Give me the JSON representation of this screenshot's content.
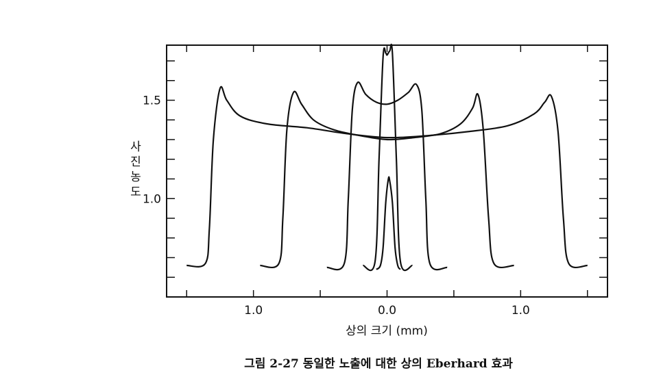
{
  "chart_data": {
    "type": "line",
    "xlabel": "상의 크기 (mm)",
    "ylabel": "사진농도",
    "caption": "그림 2-27  동일한 노출에 대한 상의 Eberhard 효과",
    "xlim": [
      -1.65,
      1.65
    ],
    "ylim": [
      0.5,
      1.78
    ],
    "x_tick_labels": [
      {
        "value": -1.0,
        "label": "1.0"
      },
      {
        "value": 0.0,
        "label": "0.0"
      },
      {
        "value": 1.0,
        "label": "1.0"
      }
    ],
    "y_tick_labels": [
      {
        "value": 1.5,
        "label": "1.5"
      },
      {
        "value": 1.0,
        "label": "1.0"
      }
    ],
    "series": [
      {
        "x": [
          -1.5,
          -1.36,
          -1.33,
          -1.3,
          -1.25,
          -1.2,
          -1.1,
          -0.9,
          -0.6,
          -0.3,
          0.0,
          0.3,
          0.6,
          0.9,
          1.1,
          1.18,
          1.23,
          1.28,
          1.32,
          1.36,
          1.5
        ],
        "y": [
          0.66,
          0.67,
          0.85,
          1.3,
          1.56,
          1.5,
          1.42,
          1.38,
          1.36,
          1.33,
          1.31,
          1.32,
          1.34,
          1.37,
          1.43,
          1.49,
          1.52,
          1.34,
          0.9,
          0.67,
          0.66
        ]
      },
      {
        "x": [
          -0.95,
          -0.81,
          -0.78,
          -0.75,
          -0.7,
          -0.64,
          -0.55,
          -0.4,
          -0.2,
          0.0,
          0.2,
          0.4,
          0.55,
          0.64,
          0.68,
          0.72,
          0.76,
          0.8,
          0.95
        ],
        "y": [
          0.66,
          0.67,
          0.9,
          1.35,
          1.54,
          1.48,
          1.4,
          1.35,
          1.32,
          1.3,
          1.31,
          1.33,
          1.38,
          1.46,
          1.53,
          1.35,
          0.9,
          0.67,
          0.66
        ]
      },
      {
        "x": [
          -0.45,
          -0.32,
          -0.29,
          -0.26,
          -0.22,
          -0.16,
          -0.08,
          0.0,
          0.08,
          0.16,
          0.22,
          0.26,
          0.29,
          0.32,
          0.45
        ],
        "y": [
          0.65,
          0.67,
          1.0,
          1.45,
          1.59,
          1.53,
          1.49,
          1.48,
          1.5,
          1.54,
          1.58,
          1.45,
          1.0,
          0.67,
          0.65
        ]
      },
      {
        "x": [
          -0.18,
          -0.09,
          -0.06,
          -0.03,
          -0.01,
          0.0,
          0.02,
          0.04,
          0.07,
          0.1,
          0.19
        ],
        "y": [
          0.66,
          0.68,
          1.2,
          1.72,
          1.74,
          1.73,
          1.75,
          1.74,
          1.2,
          0.68,
          0.66
        ]
      },
      {
        "x": [
          -0.08,
          -0.05,
          -0.03,
          -0.01,
          0.01,
          0.02,
          0.04,
          0.06,
          0.08,
          0.1
        ],
        "y": [
          0.64,
          0.66,
          0.75,
          0.98,
          1.1,
          1.09,
          0.98,
          0.75,
          0.66,
          0.64
        ]
      }
    ]
  }
}
